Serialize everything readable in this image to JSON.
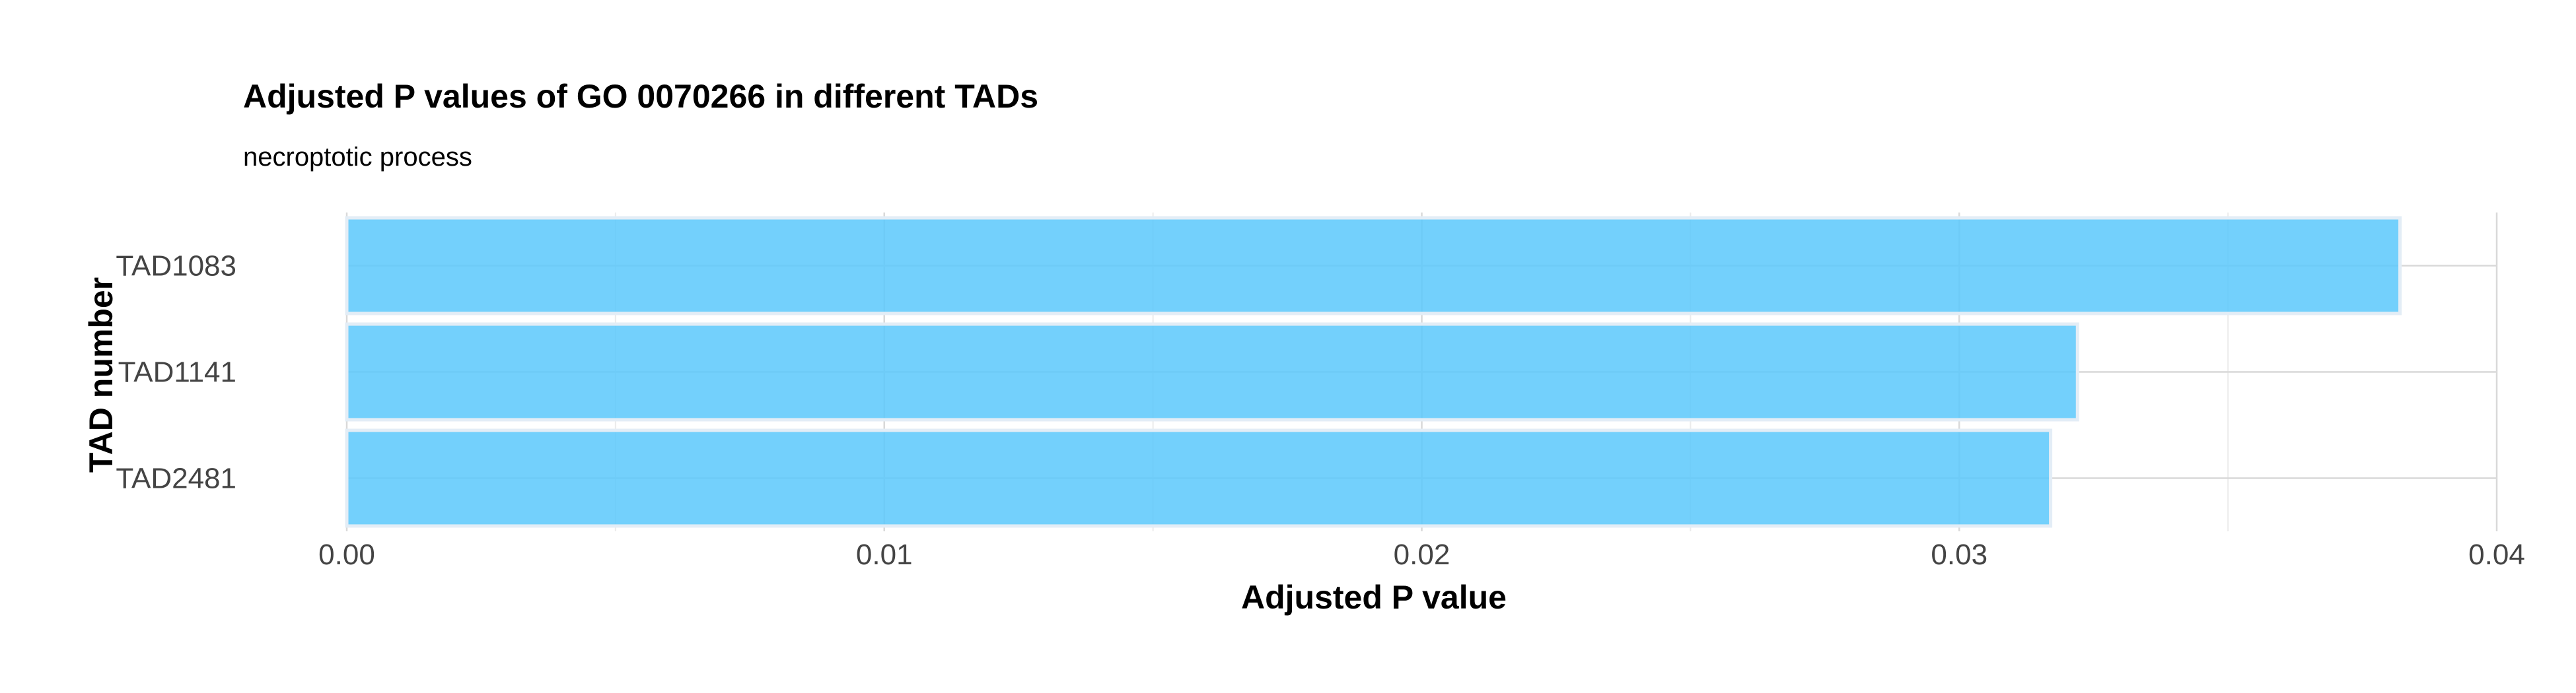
{
  "chart_data": {
    "type": "bar",
    "orientation": "horizontal",
    "title": "Adjusted P values of GO 0070266 in different TADs",
    "subtitle": "necroptotic process",
    "xlabel": "Adjusted P value",
    "ylabel": "TAD number",
    "categories": [
      "TAD1083",
      "TAD1141",
      "TAD2481"
    ],
    "values": [
      0.0382,
      0.0322,
      0.0317
    ],
    "xlim": [
      0,
      0.04
    ],
    "xticks": [
      0.0,
      0.01,
      0.02,
      0.03,
      0.04
    ],
    "xtick_labels": [
      "0.00",
      "0.01",
      "0.02",
      "0.03",
      "0.04"
    ],
    "grid": true,
    "bar_color": "#5bc8fb",
    "bar_outline": "#e3edf6"
  }
}
